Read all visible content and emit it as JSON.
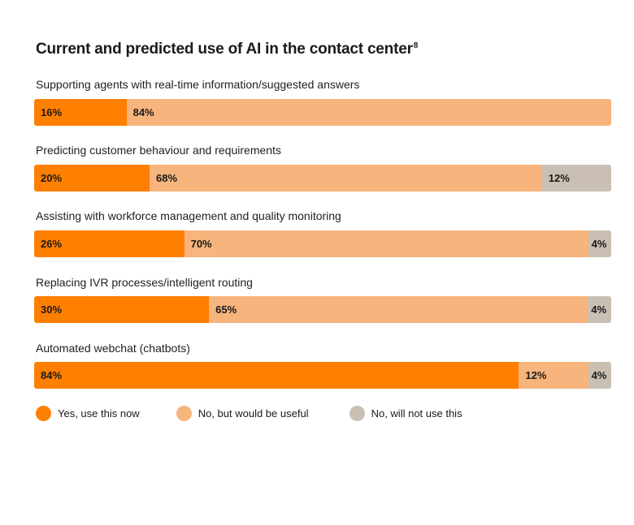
{
  "chart_data": {
    "type": "bar",
    "orientation": "horizontal",
    "stacked": true,
    "title": "Current and predicted use of AI in the contact center",
    "title_footnote": "8",
    "categories": [
      "Supporting agents with real-time information/suggested answers",
      "Predicting customer behaviour and requirements",
      "Assisting with workforce management and quality monitoring",
      "Replacing IVR processes/intelligent routing",
      "Automated webchat (chatbots)"
    ],
    "series": [
      {
        "name": "Yes, use this now",
        "color": "#ff7f00",
        "values": [
          16,
          20,
          26,
          30,
          84
        ]
      },
      {
        "name": "No, but would be useful",
        "color": "#f7b47c",
        "values": [
          84,
          68,
          70,
          65,
          12
        ]
      },
      {
        "name": "No, will not use this",
        "color": "#c9c0b3",
        "values": [
          0,
          12,
          4,
          4,
          4
        ]
      }
    ],
    "value_suffix": "%",
    "legend_position": "bottom-left"
  }
}
